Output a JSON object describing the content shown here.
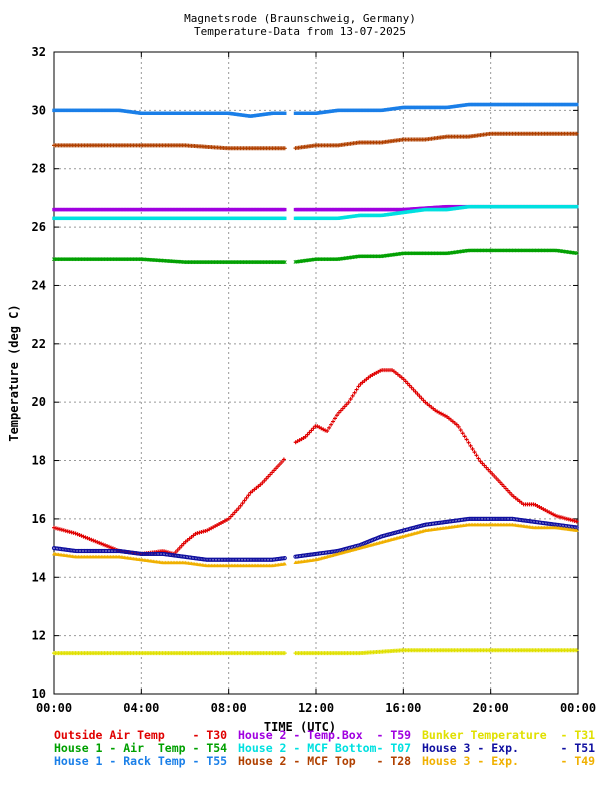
{
  "title": "Magnetsrode (Braunschweig, Germany)",
  "subtitle": "Temperature-Data from 13-07-2025",
  "chart_data": {
    "type": "scatter",
    "title": "Magnetsrode (Braunschweig, Germany)",
    "subtitle": "Temperature-Data from 13-07-2025",
    "xlabel": "TIME (UTC)",
    "ylabel": "Temperature (deg C)",
    "xlim": [
      0,
      24
    ],
    "ylim": [
      10,
      32
    ],
    "x_ticks": [
      "00:00",
      "04:00",
      "08:00",
      "12:00",
      "16:00",
      "20:00",
      "00:00"
    ],
    "x_tick_values": [
      0,
      4,
      8,
      12,
      16,
      20,
      24
    ],
    "y_ticks": [
      10,
      12,
      14,
      16,
      18,
      20,
      22,
      24,
      26,
      28,
      30,
      32
    ],
    "grid": true,
    "legend_position": "bottom",
    "series": [
      {
        "name": "Outside Air Temp",
        "code": "T30",
        "color": "#e00000",
        "marker": "plus",
        "x": [
          0,
          1,
          2,
          3,
          4,
          5,
          5.5,
          6,
          6.5,
          7,
          7.5,
          8,
          8.5,
          9,
          9.5,
          10,
          10.5,
          11,
          11.5,
          12,
          12.5,
          13,
          13.5,
          14,
          14.5,
          15,
          15.5,
          16,
          16.5,
          17,
          17.5,
          18,
          18.5,
          19,
          19.5,
          20,
          20.5,
          21,
          21.5,
          22,
          22.5,
          23,
          23.5,
          24
        ],
        "y": [
          15.7,
          15.5,
          15.2,
          14.9,
          14.8,
          14.9,
          14.8,
          15.2,
          15.5,
          15.6,
          15.8,
          16.0,
          16.4,
          16.9,
          17.2,
          17.6,
          18.0,
          18.6,
          18.8,
          19.2,
          19.0,
          19.6,
          20.0,
          20.6,
          20.9,
          21.1,
          21.1,
          20.8,
          20.4,
          20.0,
          19.7,
          19.5,
          19.2,
          18.6,
          18.0,
          17.6,
          17.2,
          16.8,
          16.5,
          16.5,
          16.3,
          16.1,
          16.0,
          15.9
        ]
      },
      {
        "name": "House 1 - Air  Temp",
        "code": "T54",
        "color": "#00a000",
        "marker": "x",
        "x": [
          0,
          2,
          4,
          6,
          8,
          10,
          11,
          12,
          13,
          14,
          15,
          16,
          17,
          18,
          19,
          20,
          21,
          22,
          23,
          24
        ],
        "y": [
          24.9,
          24.9,
          24.9,
          24.8,
          24.8,
          24.8,
          24.8,
          24.9,
          24.9,
          25.0,
          25.0,
          25.1,
          25.1,
          25.1,
          25.2,
          25.2,
          25.2,
          25.2,
          25.2,
          25.1
        ]
      },
      {
        "name": "House 1 - Rack Temp",
        "code": "T55",
        "color": "#1a7fe8",
        "marker": "square",
        "x": [
          0,
          1,
          2,
          3,
          4,
          5,
          6,
          7,
          8,
          9,
          10,
          11,
          12,
          13,
          14,
          15,
          16,
          17,
          18,
          19,
          20,
          21,
          22,
          23,
          24
        ],
        "y": [
          30.0,
          30.0,
          30.0,
          30.0,
          29.9,
          29.9,
          29.9,
          29.9,
          29.9,
          29.8,
          29.9,
          29.9,
          29.9,
          30.0,
          30.0,
          30.0,
          30.1,
          30.1,
          30.1,
          30.2,
          30.2,
          30.2,
          30.2,
          30.2,
          30.2
        ]
      },
      {
        "name": "House 2 - Temp.Box",
        "code": "T59",
        "color": "#a000e0",
        "marker": "square",
        "x": [
          0,
          2,
          4,
          6,
          8,
          10,
          12,
          14,
          16,
          18,
          20,
          22,
          24
        ],
        "y": [
          26.6,
          26.6,
          26.6,
          26.6,
          26.6,
          26.6,
          26.6,
          26.6,
          26.6,
          26.7,
          26.7,
          26.7,
          26.7
        ]
      },
      {
        "name": "House 2 - MCF Bottom",
        "code": "T07",
        "color": "#00e0e0",
        "marker": "square",
        "x": [
          0,
          2,
          4,
          6,
          8,
          10,
          11,
          12,
          13,
          14,
          15,
          16,
          17,
          18,
          19,
          20,
          21,
          22,
          23,
          24
        ],
        "y": [
          26.3,
          26.3,
          26.3,
          26.3,
          26.3,
          26.3,
          26.3,
          26.3,
          26.3,
          26.4,
          26.4,
          26.5,
          26.6,
          26.6,
          26.7,
          26.7,
          26.7,
          26.7,
          26.7,
          26.7
        ]
      },
      {
        "name": "House 2 - MCF Top",
        "code": "T28",
        "color": "#b04000",
        "marker": "plus",
        "x": [
          0,
          2,
          4,
          6,
          8,
          10,
          11,
          12,
          13,
          14,
          15,
          16,
          17,
          18,
          19,
          20,
          21,
          22,
          23,
          24
        ],
        "y": [
          28.8,
          28.8,
          28.8,
          28.8,
          28.7,
          28.7,
          28.7,
          28.8,
          28.8,
          28.9,
          28.9,
          29.0,
          29.0,
          29.1,
          29.1,
          29.2,
          29.2,
          29.2,
          29.2,
          29.2
        ]
      },
      {
        "name": "Bunker Temperature",
        "code": "T31",
        "color": "#e0e000",
        "marker": "plus",
        "x": [
          0,
          2,
          4,
          6,
          8,
          10,
          12,
          14,
          16,
          18,
          20,
          22,
          24
        ],
        "y": [
          11.4,
          11.4,
          11.4,
          11.4,
          11.4,
          11.4,
          11.4,
          11.4,
          11.5,
          11.5,
          11.5,
          11.5,
          11.5
        ]
      },
      {
        "name": "House 3 - Exp.",
        "code": "T51",
        "color": "#1010a0",
        "marker": "circle",
        "x": [
          0,
          1,
          2,
          3,
          4,
          5,
          6,
          7,
          8,
          9,
          10,
          11,
          12,
          13,
          14,
          15,
          16,
          17,
          18,
          19,
          20,
          21,
          22,
          23,
          24
        ],
        "y": [
          15.0,
          14.9,
          14.9,
          14.9,
          14.8,
          14.8,
          14.7,
          14.6,
          14.6,
          14.6,
          14.6,
          14.7,
          14.8,
          14.9,
          15.1,
          15.4,
          15.6,
          15.8,
          15.9,
          16.0,
          16.0,
          16.0,
          15.9,
          15.8,
          15.7
        ]
      },
      {
        "name": "House 3 - Exp.",
        "code": "T49",
        "color": "#f0b000",
        "marker": "triangle",
        "x": [
          0,
          1,
          2,
          3,
          4,
          5,
          6,
          7,
          8,
          9,
          10,
          11,
          12,
          13,
          14,
          15,
          16,
          17,
          18,
          19,
          20,
          21,
          22,
          23,
          24
        ],
        "y": [
          14.8,
          14.7,
          14.7,
          14.7,
          14.6,
          14.5,
          14.5,
          14.4,
          14.4,
          14.4,
          14.4,
          14.5,
          14.6,
          14.8,
          15.0,
          15.2,
          15.4,
          15.6,
          15.7,
          15.8,
          15.8,
          15.8,
          15.7,
          15.7,
          15.6
        ]
      }
    ]
  }
}
